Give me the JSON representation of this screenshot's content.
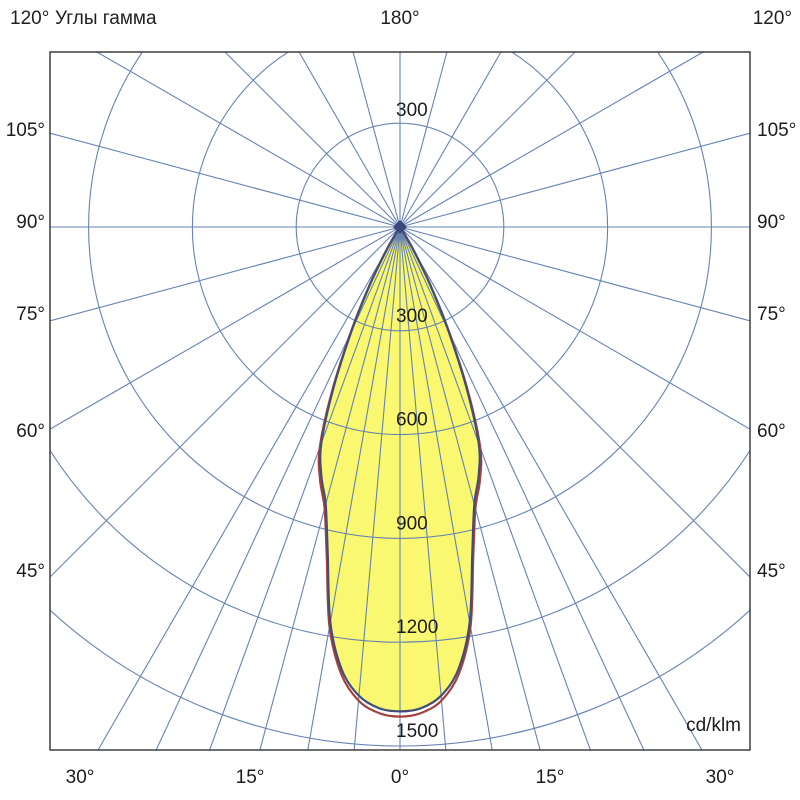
{
  "header": {
    "left_corner_label": "120°",
    "title": "Углы гамма",
    "top_center_label": "180°",
    "right_corner_label": "120°"
  },
  "chart_data": {
    "type": "polar",
    "title": "Углы гамма",
    "units_label": "cd/klm",
    "angular_axis": {
      "top_center_label": "180°",
      "corner_labels": [
        "120°",
        "120°"
      ],
      "side_labels": [
        "105°",
        "90°",
        "75°",
        "60°",
        "45°"
      ],
      "side_values_deg": [
        105,
        90,
        75,
        60,
        45
      ],
      "bottom_labels": [
        "30°",
        "15°",
        "0°",
        "15°",
        "30°"
      ],
      "bottom_values_deg": [
        -30,
        -15,
        0,
        15,
        30
      ],
      "main_grid_step_deg": 15,
      "fine_grid_step_deg": 5,
      "fine_grid_span_deg": 30
    },
    "radial_axis": {
      "ring_values": [
        300,
        600,
        900,
        1200,
        1500
      ],
      "ring_labels_below": [
        "300",
        "600",
        "900",
        "1200",
        "1500"
      ],
      "ring_label_above": "300",
      "max": 1500,
      "units": "cd/klm"
    },
    "series": [
      {
        "name": "luminous-intensity-curve-red",
        "color": "#a8403a",
        "gamma_deg": [
          0,
          2.5,
          5,
          7.5,
          10,
          12.5,
          15,
          17.5,
          20,
          22.5,
          25,
          27.5,
          30,
          32.5,
          35
        ],
        "cd_per_klm": [
          1415,
          1406,
          1374,
          1303,
          1173,
          978,
          842,
          768,
          678,
          512,
          340,
          198,
          92,
          28,
          0
        ]
      },
      {
        "name": "luminous-intensity-curve-blue",
        "color": "#424d78",
        "gamma_deg": [
          0,
          2.5,
          5,
          7.5,
          10,
          12.5,
          15,
          17.5,
          20,
          22.5,
          25,
          27.5,
          30,
          32.5,
          35
        ],
        "cd_per_klm": [
          1400,
          1392,
          1360,
          1290,
          1160,
          965,
          830,
          755,
          665,
          500,
          330,
          190,
          85,
          25,
          0
        ]
      }
    ],
    "peak_intensity_cd_per_klm": 1400,
    "fill_color": "#f9f870",
    "grid_color": "#5f7cb2",
    "border_color": "#3f3f3f",
    "text_color": "#1c1c1c"
  }
}
